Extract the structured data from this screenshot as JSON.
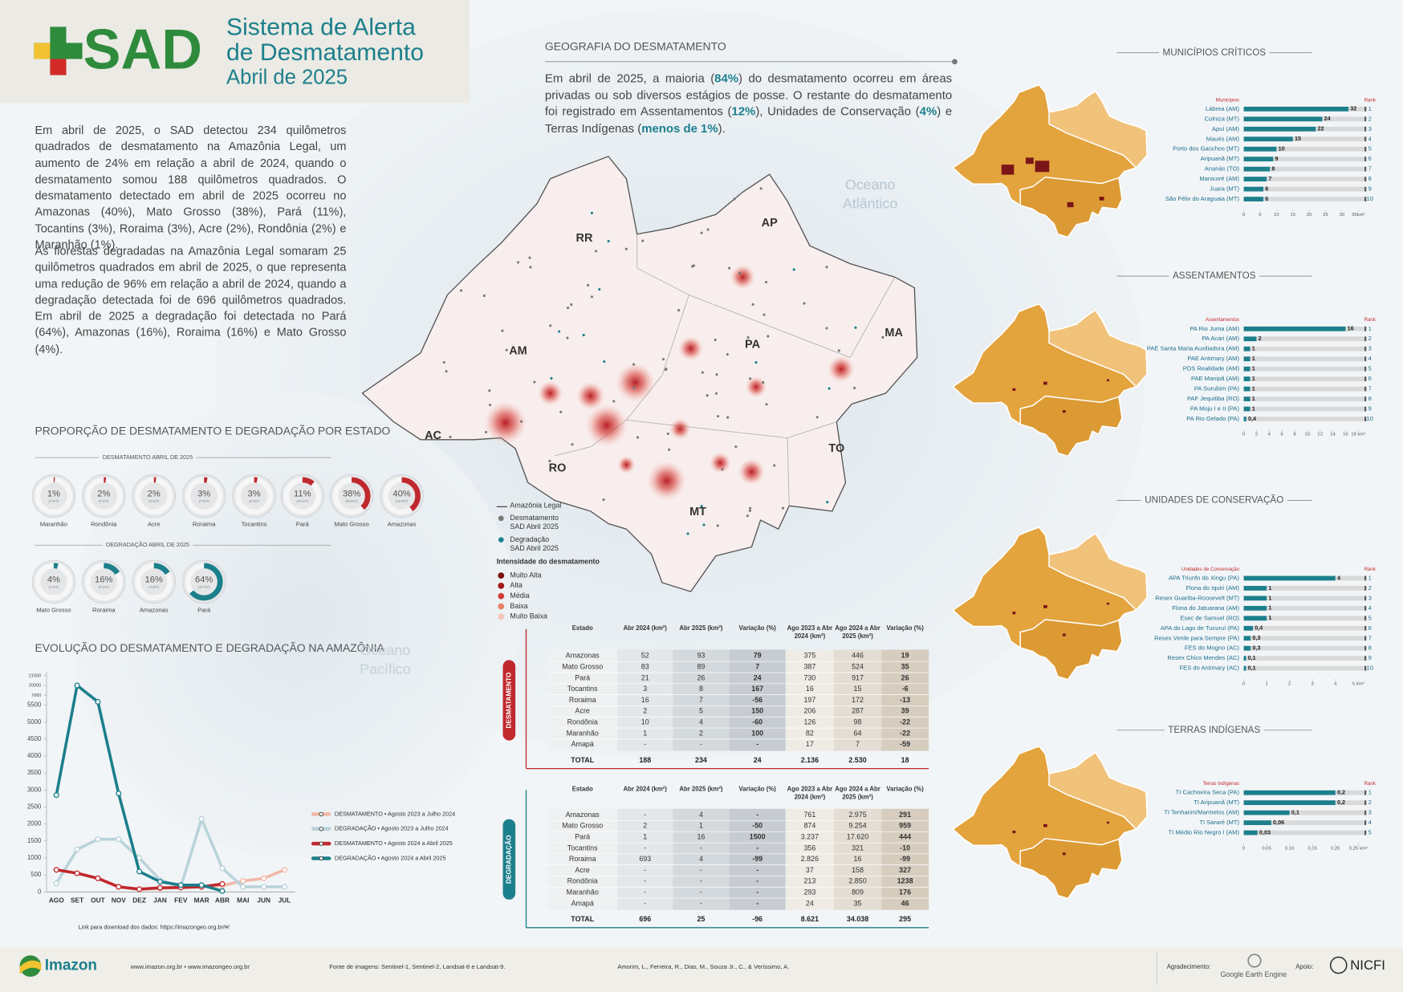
{
  "header": {
    "logo": "SAD",
    "title_line1": "Sistema de Alerta",
    "title_line2": "de Desmatamento",
    "subtitle": "Abril de 2025"
  },
  "intro": [
    "Em abril de 2025, o SAD detectou 234 quilômetros quadrados de desmatamento na Amazônia Legal, um aumento de 24% em relação a abril de 2024, quando o desmatamento somou 188 quilômetros quadrados. O desmatamento detectado em abril de 2025 ocorreu no Amazonas (40%), Mato Grosso (38%), Pará (11%), Tocantins (3%), Roraima (3%), Acre (2%), Rondônia (2%) e Maranhão (1%).",
    "As florestas degradadas na Amazônia Legal somaram 25 quilômetros quadrados em abril de 2025, o que representa uma redução de 96% em relação a abril de 2024, quando a degradação detectada foi de 696 quilômetros quadrados. Em abril de 2025 a degradação foi detectada no Pará (64%), Amazonas (16%), Roraima (16%) e Mato Grosso (4%)."
  ],
  "geo": {
    "title": "GEOGRAFIA DO DESMATAMENTO",
    "text": [
      {
        "text": "Em abril de 2025, a maioria ("
      },
      {
        "text": "84%",
        "bold": true
      },
      {
        "text": ") do desmatamento ocorreu em áreas privadas ou sob diversos estágios de posse. O restante do desmatamento foi registrado em Assentamentos ("
      },
      {
        "text": "12%",
        "bold": true
      },
      {
        "text": "), Unidades de Conservação ("
      },
      {
        "text": "4%",
        "bold": true
      },
      {
        "text": ") e Terras Indígenas ("
      },
      {
        "text": "menos de 1%",
        "bold": true
      },
      {
        "text": ")."
      }
    ]
  },
  "map": {
    "states": [
      "RR",
      "AP",
      "AM",
      "PA",
      "MA",
      "AC",
      "RO",
      "TO",
      "MT"
    ],
    "oceans": [
      "Oceano Atlântico",
      "Oceano Pacífico"
    ],
    "legend": [
      "Amazônia Legal",
      "Desmatamento SAD Abril 2025",
      "Degradação SAD Abril 2025"
    ],
    "intensity_title": "Intensidade do desmatamento",
    "intensity": [
      {
        "name": "Muito Alta",
        "color": "#7a0f12"
      },
      {
        "name": "Alta",
        "color": "#a5191c"
      },
      {
        "name": "Média",
        "color": "#cf3f36"
      },
      {
        "name": "Baixa",
        "color": "#e9806a"
      },
      {
        "name": "Muito Baixa",
        "color": "#f4c7bd"
      }
    ]
  },
  "proportion": {
    "title": "PROPORÇÃO DE DESMATAMENTO E DEGRADAÇÃO POR ESTADO",
    "charts": [
      {
        "type": "donut",
        "title": "DESMATAMENTO ABRIL DE 2025",
        "color": "#c0282d",
        "categories": [
          "Maranhão",
          "Rondônia",
          "Acre",
          "Roraima",
          "Tocantins",
          "Pará",
          "Mato Grosso",
          "Amazonas"
        ],
        "values": [
          1,
          2,
          2,
          3,
          3,
          11,
          38,
          40
        ],
        "value_labels": [
          "1%",
          "2%",
          "2%",
          "3%",
          "3%",
          "11%",
          "38%",
          "40%"
        ],
        "areas": [
          "(2 km²)",
          "(4 km²)",
          "(5 km²)",
          "(7 km²)",
          "(8 km²)",
          "(26 km²)",
          "(89 km²)",
          "(93 km²)"
        ]
      },
      {
        "type": "donut",
        "title": "DEGRADAÇÃO ABRIL DE 2025",
        "color": "#1c7f8c",
        "categories": [
          "Mato Grosso",
          "Roraima",
          "Amazonas",
          "Pará"
        ],
        "values": [
          4,
          16,
          16,
          64
        ],
        "value_labels": [
          "4%",
          "16%",
          "16%",
          "64%"
        ],
        "areas": [
          "(1 km²)",
          "(4 km²)",
          "(4 km²)",
          "(16 km²)"
        ]
      }
    ]
  },
  "evolution": {
    "type": "line",
    "title": "EVOLUÇÃO DO DESMATAMENTO E DEGRADAÇÃO NA AMAZÔNIA",
    "categories": [
      "AGO",
      "SET",
      "OUT",
      "NOV",
      "DEZ",
      "JAN",
      "FEV",
      "MAR",
      "ABR",
      "MAI",
      "JUN",
      "JUL"
    ],
    "ylim": [
      0,
      21000
    ],
    "yticks": [
      0,
      500,
      1000,
      1500,
      2000,
      2500,
      3000,
      3500,
      4000,
      4500,
      5000,
      5500,
      7000,
      20000,
      21000
    ],
    "series": [
      {
        "name": "DESMATAMENTO • Agosto 2023 a Julho 2024",
        "color": "#f2b8a8",
        "values": [
          650,
          550,
          400,
          150,
          80,
          100,
          130,
          160,
          188,
          320,
          400,
          650
        ]
      },
      {
        "name": "DEGRADAÇÃO • Agosto 2023 a Julho 2024",
        "color": "#b9d3da",
        "values": [
          250,
          1250,
          1550,
          1550,
          1000,
          350,
          150,
          2150,
          696,
          150,
          150,
          150
        ]
      },
      {
        "name": "DESMATAMENTO • Agosto 2024 a Abril 2025",
        "color": "#c0282d",
        "values": [
          650,
          550,
          400,
          150,
          80,
          120,
          130,
          150,
          234,
          null,
          null,
          null
        ]
      },
      {
        "name": "DEGRADAÇÃO • Agosto 2024 a Abril 2025",
        "color": "#1c7f8c",
        "values": [
          2850,
          20000,
          6000,
          2900,
          600,
          300,
          200,
          200,
          25,
          null,
          null,
          null
        ]
      }
    ],
    "link": "Link para download dos dados: https://imazongeo.org.br/#/"
  },
  "rankings": [
    {
      "type": "bar",
      "title": "MUNICÍPIOS CRÍTICOS",
      "header_name": "Municípios",
      "header_rank": "Rank",
      "color": "#1c7f8c",
      "names": [
        "Lábrea (AM)",
        "Colniza (MT)",
        "Apuí (AM)",
        "Maués (AM)",
        "Porto dos Gaúchos (MT)",
        "Aripuanã (MT)",
        "Ananás (TO)",
        "Manicoré (AM)",
        "Juara (MT)",
        "São Félix do Araguaia (MT)"
      ],
      "values": [
        32,
        24,
        22,
        15,
        10,
        9,
        8,
        7,
        6,
        6
      ],
      "ranks": [
        1,
        2,
        3,
        4,
        5,
        6,
        7,
        8,
        9,
        10
      ],
      "xlim": [
        0,
        35
      ],
      "xticks": [
        0,
        5,
        10,
        15,
        20,
        25,
        30,
        {
          "value": 35,
          "label": "35km²"
        }
      ]
    },
    {
      "type": "bar",
      "title": "ASSENTAMENTOS",
      "header_name": "Assentamentos",
      "header_rank": "Rank",
      "color": "#1c7f8c",
      "names": [
        "PA Rio Juma (AM)",
        "PA Acari (AM)",
        "PAE Santa Maria Auxiliadora (AM)",
        "PAE Antimary (AM)",
        "PDS Realidade (AM)",
        "PAE Manipã (AM)",
        "PA Surubim (PA)",
        "PAF Jequitiba (RO)",
        "PA Moju I e II (PA)",
        "PA Rio Gelado (PA)"
      ],
      "values": [
        16,
        2,
        1,
        1,
        1,
        1,
        1,
        1,
        1,
        0.4
      ],
      "value_labels": [
        "16",
        "2",
        "1",
        "1",
        "1",
        "1",
        "1",
        "1",
        "1",
        "0,4"
      ],
      "ranks": [
        1,
        2,
        3,
        4,
        5,
        6,
        7,
        8,
        9,
        10
      ],
      "xlim": [
        0,
        18
      ],
      "xticks": [
        0,
        2,
        4,
        6,
        8,
        10,
        12,
        14,
        16,
        {
          "value": 18,
          "label": "18 km²"
        }
      ]
    },
    {
      "type": "bar",
      "title": "UNIDADES DE CONSERVAÇÃO",
      "header_name": "Unidades de Conservação",
      "header_rank": "Rank",
      "color": "#1c7f8c",
      "names": [
        "APA Triunfo do Xingu (PA)",
        "Flona do Iquiri (AM)",
        "Resex Guariba-Roosevelt (MT)",
        "Flona do Jatuarana (AM)",
        "Esec de Samuel (RO)",
        "APA do Lago de Tucuruí (PA)",
        "Resex Verde para Sempre (PA)",
        "FES do Mogno (AC)",
        "Resex Chico Mendes (AC)",
        "FES do Antimary (AC)"
      ],
      "values": [
        4,
        1,
        1,
        1,
        1,
        0.4,
        0.3,
        0.3,
        0.1,
        0.1
      ],
      "value_labels": [
        "4",
        "1",
        "1",
        "1",
        "1",
        "0,4",
        "0,3",
        "0,3",
        "0,1",
        "0,1"
      ],
      "ranks": [
        1,
        2,
        3,
        4,
        5,
        6,
        7,
        8,
        9,
        10
      ],
      "xlim": [
        0,
        5
      ],
      "xticks": [
        0,
        1,
        2,
        3,
        4,
        {
          "value": 5,
          "label": "5 km²"
        }
      ]
    },
    {
      "type": "bar",
      "title": "TERRAS INDÍGENAS",
      "header_name": "Terras Indígenas",
      "header_rank": "Rank",
      "color": "#1c7f8c",
      "names": [
        "TI Cachoeira Seca (PA)",
        "TI Aripuanã (MT)",
        "TI Tenharim/Marmelos (AM)",
        "TI Sararé (MT)",
        "TI Médio Rio Negro I (AM)"
      ],
      "values": [
        0.2,
        0.2,
        0.1,
        0.06,
        0.03
      ],
      "value_labels": [
        "0,2",
        "0,2",
        "0,1",
        "0,06",
        "0,03"
      ],
      "ranks": [
        1,
        2,
        3,
        4,
        5
      ],
      "xlim": [
        0,
        0.25
      ],
      "xticks": [
        0,
        {
          "value": 0.05,
          "label": "0,05"
        },
        {
          "value": 0.1,
          "label": "0,10"
        },
        {
          "value": 0.15,
          "label": "0,15"
        },
        {
          "value": 0.2,
          "label": "0,20"
        },
        {
          "value": 0.25,
          "label": "0,25 km²"
        }
      ]
    }
  ],
  "tables": [
    {
      "label": "DESMATAMENTO",
      "color": "#c0282d",
      "columns": [
        "Estado",
        "Abr 2024 (km²)",
        "Abr 2025 (km²)",
        "Variação (%)",
        "Ago 2023 a Abr 2024 (km²)",
        "Ago 2024 a Abr 2025 (km²)",
        "Variação (%)"
      ],
      "rows": [
        [
          "Amazonas",
          "52",
          "93",
          "79",
          "375",
          "446",
          "19"
        ],
        [
          "Mato Grosso",
          "83",
          "89",
          "7",
          "387",
          "524",
          "35"
        ],
        [
          "Pará",
          "21",
          "26",
          "24",
          "730",
          "917",
          "26"
        ],
        [
          "Tocantins",
          "3",
          "8",
          "167",
          "16",
          "15",
          "-6"
        ],
        [
          "Roraima",
          "16",
          "7",
          "-56",
          "197",
          "172",
          "-13"
        ],
        [
          "Acre",
          "2",
          "5",
          "150",
          "206",
          "287",
          "39"
        ],
        [
          "Rondônia",
          "10",
          "4",
          "-60",
          "126",
          "98",
          "-22"
        ],
        [
          "Maranhão",
          "1",
          "2",
          "100",
          "82",
          "64",
          "-22"
        ],
        [
          "Amapá",
          "-",
          "-",
          "-",
          "17",
          "7",
          "-59"
        ]
      ],
      "total": [
        "TOTAL",
        "188",
        "234",
        "24",
        "2.136",
        "2.530",
        "18"
      ]
    },
    {
      "label": "DEGRADAÇÃO",
      "color": "#1c7f8c",
      "columns": [
        "Estado",
        "Abr 2024 (km²)",
        "Abr 2025 (km²)",
        "Variação (%)",
        "Ago 2023 a Abr 2024 (km²)",
        "Ago 2024 a Abr 2025 (km²)",
        "Variação (%)"
      ],
      "rows": [
        [
          "Amazonas",
          "-",
          "4",
          "-",
          "761",
          "2.975",
          "291"
        ],
        [
          "Mato Grosso",
          "2",
          "1",
          "-50",
          "874",
          "9.254",
          "959"
        ],
        [
          "Pará",
          "1",
          "16",
          "1500",
          "3.237",
          "17.620",
          "444"
        ],
        [
          "Tocantins",
          "-",
          "-",
          "-",
          "356",
          "321",
          "-10"
        ],
        [
          "Roraima",
          "693",
          "4",
          "-99",
          "2.826",
          "16",
          "-99"
        ],
        [
          "Acre",
          "-",
          "-",
          "-",
          "37",
          "158",
          "327"
        ],
        [
          "Rondônia",
          "-",
          "-",
          "-",
          "213",
          "2.850",
          "1238"
        ],
        [
          "Maranhão",
          "-",
          "-",
          "-",
          "293",
          "809",
          "176"
        ],
        [
          "Amapá",
          "-",
          "-",
          "-",
          "24",
          "35",
          "46"
        ]
      ],
      "total": [
        "TOTAL",
        "696",
        "25",
        "-96",
        "8.621",
        "34.038",
        "295"
      ]
    }
  ],
  "footer": {
    "logo": "Imazon",
    "sites": "www.imazon.org.br • www.imazongeo.org.br",
    "source": "Fonte de imagens: Sentinel-1, Sentinel-2, Landsat-8 e Landsat-9.",
    "authors": "Amorim, L., Ferreira, R., Dias, M., Souza Jr., C., & Veríssimo, A.",
    "thanks": "Agradecimento:",
    "gee": "Google Earth Engine",
    "support": "Apoio:",
    "nicfi": "NICFI"
  }
}
